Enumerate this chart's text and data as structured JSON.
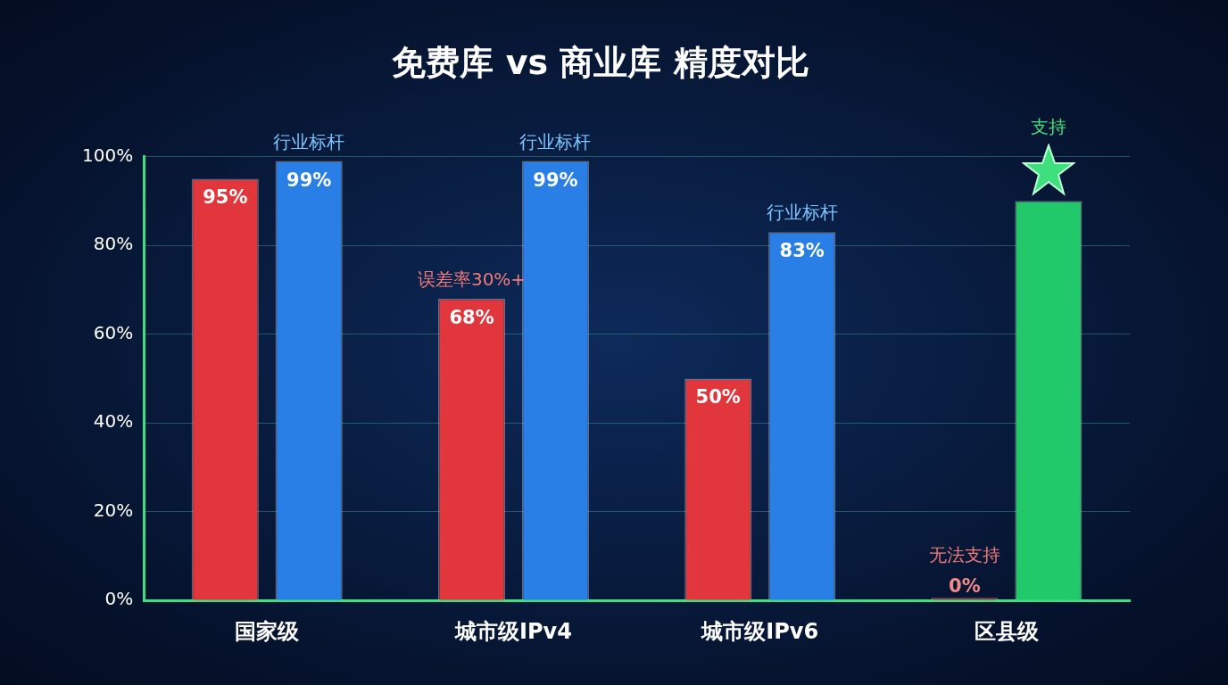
{
  "chart_data": {
    "type": "bar",
    "title": "免费库 vs 商业库 精度对比",
    "categories": [
      "国家级",
      "城市级IPv4",
      "城市级IPv6",
      "区县级"
    ],
    "series": [
      {
        "color": "#e0363c",
        "values": [
          95,
          68,
          50,
          0
        ],
        "value_labels": [
          "95%",
          "68%",
          "50%",
          "0%"
        ]
      },
      {
        "colors": [
          "#2a7fe6",
          "#2a7fe6",
          "#2a7fe6",
          "#22c96a"
        ],
        "values": [
          99,
          99,
          83,
          90
        ],
        "value_labels": [
          "99%",
          "99%",
          "83%",
          null
        ]
      }
    ],
    "ylim": [
      0,
      100
    ],
    "yticks": [
      {
        "value": 0,
        "label": "0%"
      },
      {
        "value": 20,
        "label": "20%"
      },
      {
        "value": 40,
        "label": "40%"
      },
      {
        "value": 60,
        "label": "60%"
      },
      {
        "value": 80,
        "label": "80%"
      },
      {
        "value": 100,
        "label": "100%"
      }
    ],
    "grid": "y",
    "legend": false,
    "annotations": [
      "行业标杆",
      "误差率30%+",
      "行业标杆",
      "行业标杆",
      "无法支持",
      "支持"
    ]
  }
}
